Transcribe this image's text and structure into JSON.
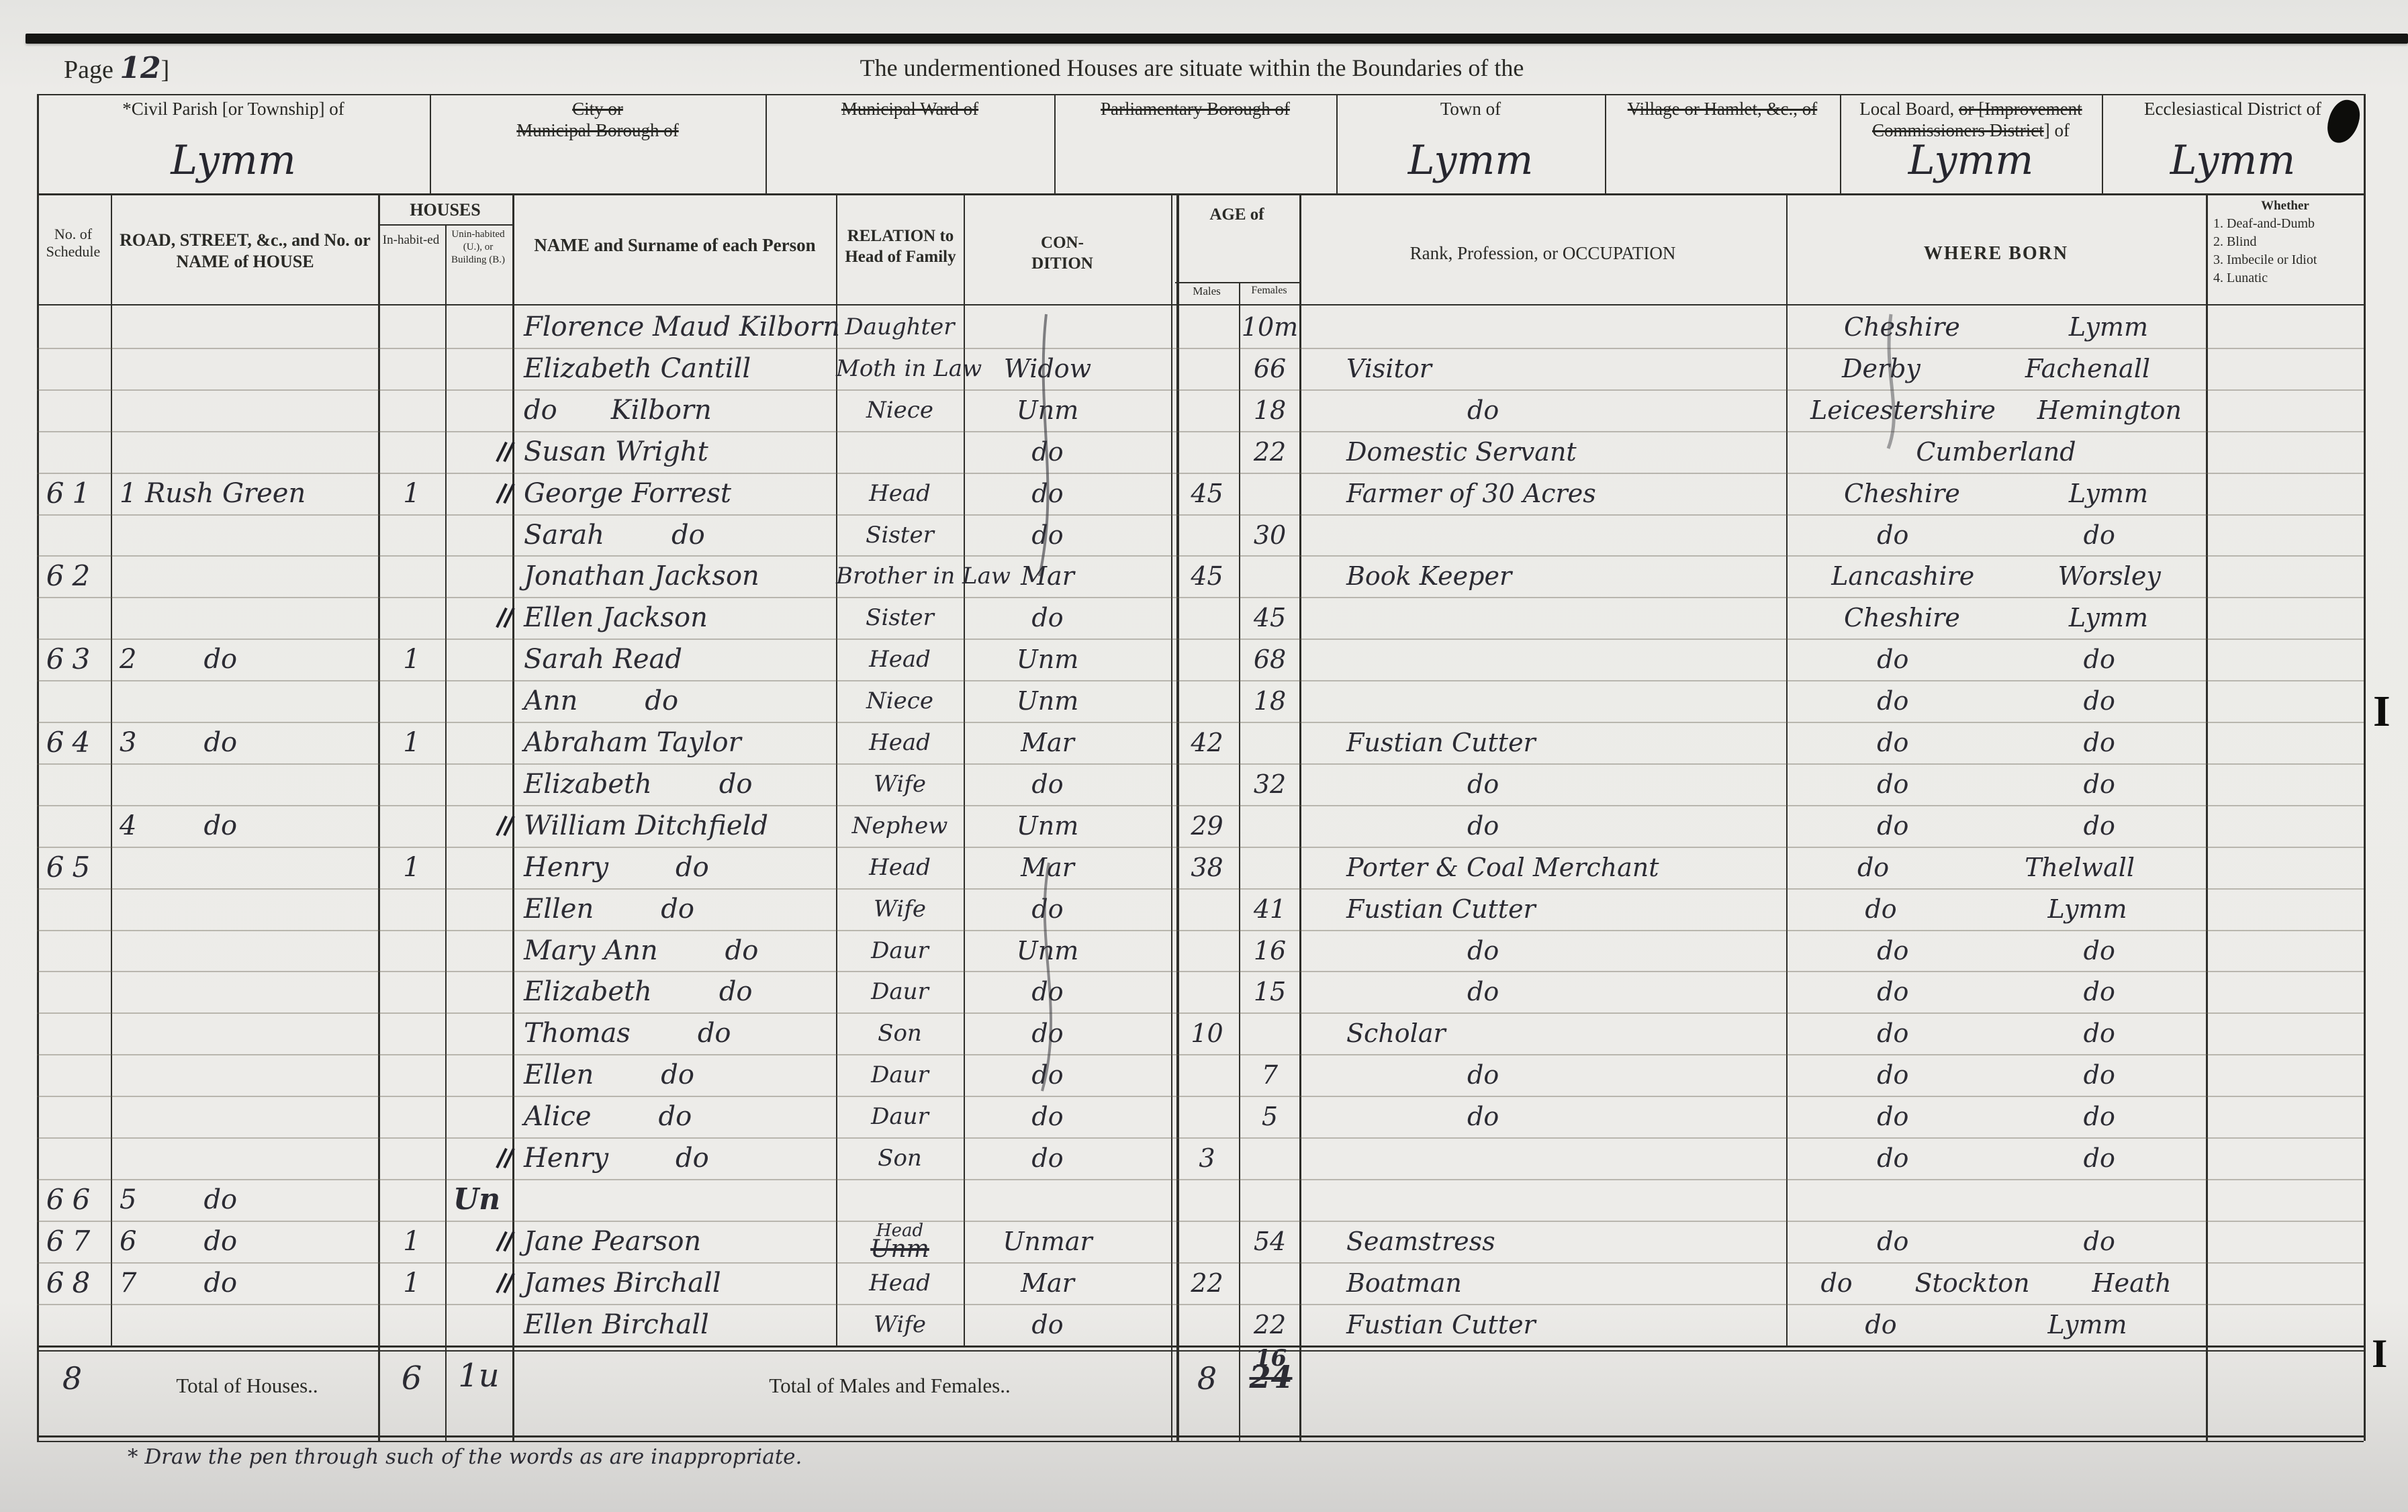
{
  "page": {
    "prefix": "Page",
    "number": "12",
    "suffix": "]",
    "title": "The undermentioned Houses are situate within the Boundaries of the",
    "footnote": "* Draw the pen through such of the words as are inappropriate."
  },
  "location_fields": [
    {
      "segments": [
        {
          "text": "*Civil Parish [or Township] of",
          "struck": false
        }
      ],
      "value": "Lymm"
    },
    {
      "segments": [
        {
          "text": "City or",
          "struck": true,
          "break": true
        },
        {
          "text": "Municipal Borough of",
          "struck": true
        }
      ],
      "value": ""
    },
    {
      "segments": [
        {
          "text": "Municipal Ward of",
          "struck": true
        }
      ],
      "value": ""
    },
    {
      "segments": [
        {
          "text": "Parliamentary Borough of",
          "struck": true
        }
      ],
      "value": ""
    },
    {
      "segments": [
        {
          "text": "Town of",
          "struck": false
        }
      ],
      "value": "Lymm"
    },
    {
      "segments": [
        {
          "text": "Village or Hamlet, &c., of",
          "struck": true
        }
      ],
      "value": ""
    },
    {
      "segments": [
        {
          "text": "Local Board, ",
          "struck": false
        },
        {
          "text": "or [Improvement",
          "struck": true,
          "break": true
        },
        {
          "text": "Commissioners District",
          "struck": true
        },
        {
          "text": "] of",
          "struck": false
        }
      ],
      "value": "Lymm"
    },
    {
      "segments": [
        {
          "text": "Ecclesiastical District of",
          "struck": false
        }
      ],
      "value": "Lymm"
    }
  ],
  "table": {
    "headers": {
      "schedule": "No. of Schedule",
      "road": "ROAD, STREET, &c., and No. or NAME of HOUSE",
      "houses": "HOUSES",
      "inhabited": "In-habit-ed",
      "uninhabited": "Unin-habited (U.), or Building (B.)",
      "name": "NAME and Surname of each Person",
      "relation": "RELATION to Head of Family",
      "condition": "CON-DITION",
      "age": "AGE of",
      "males": "Males",
      "females": "Females",
      "occupation": "Rank, Profession, or OCCUPATION",
      "born": "WHERE BORN",
      "whether_title": "Whether",
      "whether_items": [
        "1. Deaf-and-Dumb",
        "2. Blind",
        "3. Imbecile or Idiot",
        "4. Lunatic"
      ]
    },
    "rows": [
      {
        "name": "Florence Maud Kilborn",
        "relation": "Daughter",
        "age_f": "10m",
        "born": "Cheshire Lymm"
      },
      {
        "name": "Elizabeth Cantill",
        "relation": "Moth in Law",
        "condition": "Widow",
        "age_f": "66",
        "occupation": "Visitor",
        "born": "Derby Fachenall"
      },
      {
        "name": "do Kilborn",
        "relation": "Niece",
        "condition": "Unm",
        "age_f": "18",
        "occupation": "do",
        "born": "Leicestershire Hemington"
      },
      {
        "name": "Susan Wright",
        "condition": "do",
        "age_f": "22",
        "occupation": "Domestic Servant",
        "born": "Cumberland",
        "tick": true
      },
      {
        "schedule": "61",
        "road": "1 Rush Green",
        "inhabited": "1",
        "name": "George Forrest",
        "relation": "Head",
        "condition": "do",
        "age_m": "45",
        "occupation": "Farmer of 30 Acres",
        "born": "Cheshire Lymm",
        "tick": true
      },
      {
        "name": "Sarah do",
        "relation": "Sister",
        "condition": "do",
        "age_f": "30",
        "born": "do do"
      },
      {
        "schedule": "62",
        "name": "Jonathan Jackson",
        "relation": "Brother in Law",
        "condition": "Mar",
        "age_m": "45",
        "occupation": "Book Keeper",
        "born": "Lancashire Worsley"
      },
      {
        "name": "Ellen Jackson",
        "relation": "Sister",
        "condition": "do",
        "age_f": "45",
        "born": "Cheshire Lymm",
        "tick": true
      },
      {
        "schedule": "63",
        "road": "2 do",
        "inhabited": "1",
        "name": "Sarah Read",
        "relation": "Head",
        "condition": "Unm",
        "age_f": "68",
        "born": "do do"
      },
      {
        "name": "Ann do",
        "relation": "Niece",
        "condition": "Unm",
        "age_f": "18",
        "born": "do do"
      },
      {
        "schedule": "64",
        "road": "3 do",
        "inhabited": "1",
        "name": "Abraham Taylor",
        "relation": "Head",
        "condition": "Mar",
        "age_m": "42",
        "occupation": "Fustian Cutter",
        "born": "do do"
      },
      {
        "name": "Elizabeth do",
        "relation": "Wife",
        "condition": "do",
        "age_f": "32",
        "occupation": "do",
        "born": "do do"
      },
      {
        "road": "4 do",
        "name": "William Ditchfield",
        "relation": "Nephew",
        "condition": "Unm",
        "age_m": "29",
        "occupation": "do",
        "born": "do do",
        "tick": true
      },
      {
        "schedule": "65",
        "inhabited": "1",
        "name": "Henry do",
        "relation": "Head",
        "condition": "Mar",
        "age_m": "38",
        "occupation": "Porter & Coal Merchant",
        "born": "do Thelwall"
      },
      {
        "name": "Ellen do",
        "relation": "Wife",
        "condition": "do",
        "age_f": "41",
        "occupation": "Fustian Cutter",
        "born": "do Lymm"
      },
      {
        "name": "Mary Ann do",
        "relation": "Daur",
        "condition": "Unm",
        "age_f": "16",
        "occupation": "do",
        "born": "do do"
      },
      {
        "name": "Elizabeth do",
        "relation": "Daur",
        "condition": "do",
        "age_f": "15",
        "occupation": "do",
        "born": "do do"
      },
      {
        "name": "Thomas do",
        "relation": "Son",
        "condition": "do",
        "age_m": "10",
        "occupation": "Scholar",
        "born": "do do"
      },
      {
        "name": "Ellen do",
        "relation": "Daur",
        "condition": "do",
        "age_f": "7",
        "occupation": "do",
        "born": "do do"
      },
      {
        "name": "Alice do",
        "relation": "Daur",
        "condition": "do",
        "age_f": "5",
        "occupation": "do",
        "born": "do do"
      },
      {
        "name": "Henry do",
        "relation": "Son",
        "condition": "do",
        "age_m": "3",
        "born": "do do",
        "tick": true
      },
      {
        "schedule": "66",
        "road": "5 do",
        "uninhabited": "Un"
      },
      {
        "schedule": "67",
        "road": "6 do",
        "inhabited": "1",
        "name": "Jane Pearson",
        "relation": "Head",
        "relation_struck": "Unm",
        "condition": "Unmar",
        "age_f": "54",
        "occupation": "Seamstress",
        "born": "do do",
        "tick": true
      },
      {
        "schedule": "68",
        "road": "7 do",
        "inhabited": "1",
        "name": "James Birchall",
        "relation": "Head",
        "condition": "Mar",
        "age_m": "22",
        "occupation": "Boatman",
        "born": "do Stockton Heath",
        "tick": true
      },
      {
        "name": "Ellen Birchall",
        "relation": "Wife",
        "condition": "do",
        "age_f": "22",
        "occupation": "Fustian Cutter",
        "born": "do Lymm"
      }
    ]
  },
  "totals": {
    "schedule": "8",
    "houses_label": "Total of Houses..",
    "inhabited": "6",
    "uninhabited": "1u",
    "mf_label": "Total of Males and Females..",
    "males": "8",
    "females": "16",
    "females_struck": "24"
  }
}
